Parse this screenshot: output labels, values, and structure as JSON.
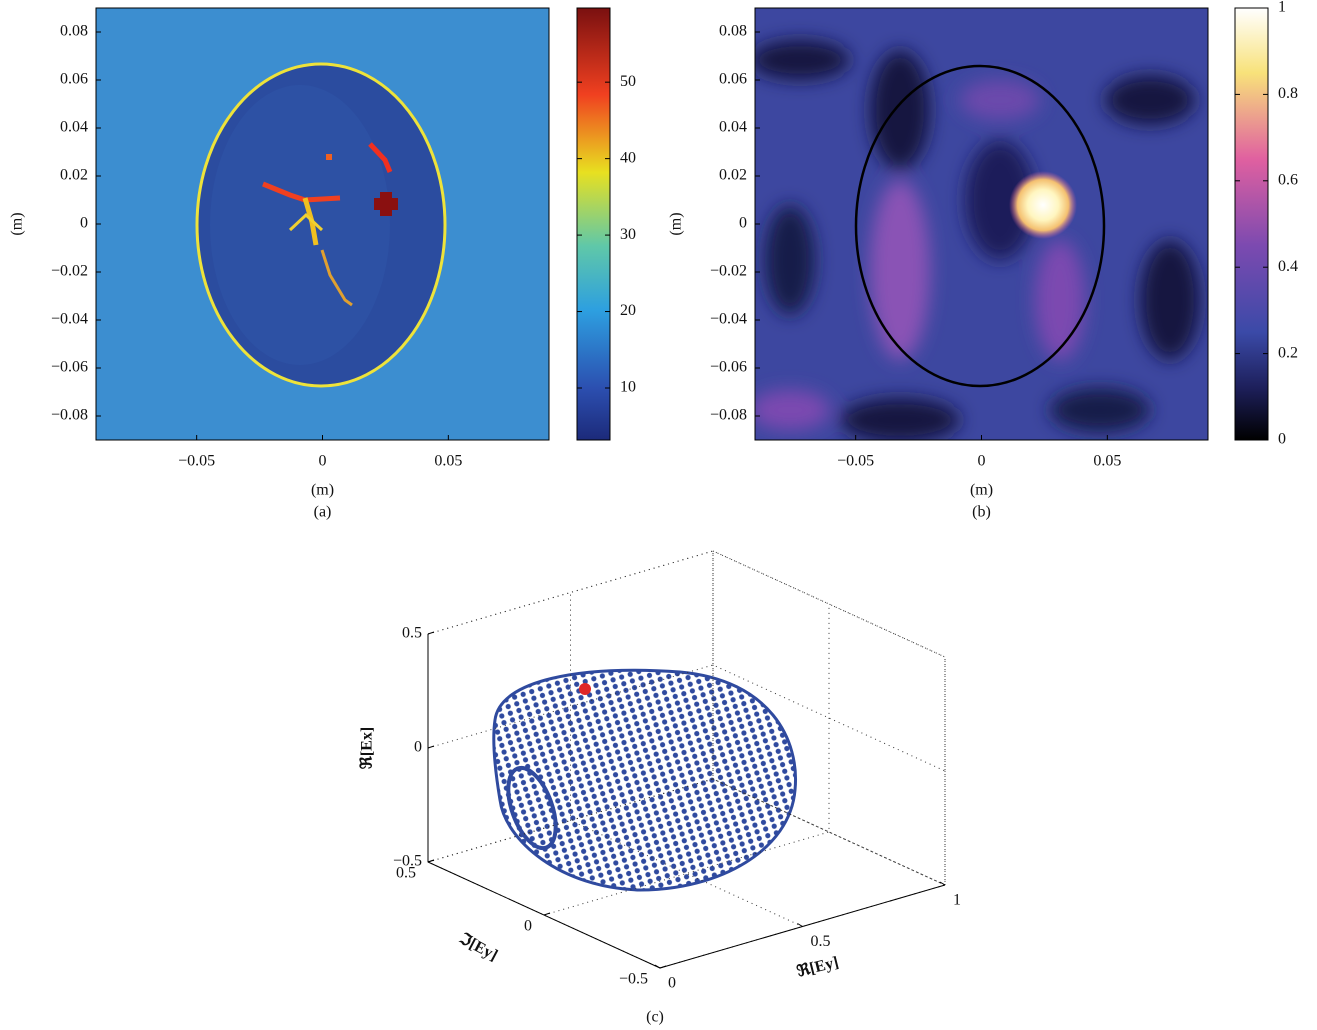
{
  "chart_data": [
    {
      "type": "heatmap",
      "caption": "(a)",
      "x_label": "(m)",
      "y_label": "(m)",
      "xlim": [
        -0.09,
        0.09
      ],
      "ylim": [
        -0.09,
        0.09
      ],
      "xticks": [
        {
          "value": -0.05,
          "label": "−0.05"
        },
        0,
        0.05
      ],
      "yticks": [
        {
          "value": -0.08,
          "label": "−0.08"
        },
        {
          "value": -0.06,
          "label": "−0.06"
        },
        {
          "value": -0.04,
          "label": "−0.04"
        },
        {
          "value": -0.02,
          "label": "−0.02"
        },
        0,
        0.02,
        0.04,
        0.06,
        0.08
      ],
      "colorbar": {
        "colormap": "jet",
        "clim": [
          3.2,
          59.7
        ],
        "ticks": [
          10,
          20,
          30,
          40,
          50
        ]
      }
    },
    {
      "type": "heatmap",
      "caption": "(b)",
      "x_label": "(m)",
      "y_label": "(m)",
      "xlim": [
        -0.09,
        0.09
      ],
      "ylim": [
        -0.09,
        0.09
      ],
      "xticks": [
        {
          "value": -0.05,
          "label": "−0.05"
        },
        0,
        0.05
      ],
      "yticks": [
        {
          "value": -0.08,
          "label": "−0.08"
        },
        {
          "value": -0.06,
          "label": "−0.06"
        },
        {
          "value": -0.04,
          "label": "−0.04"
        },
        {
          "value": -0.02,
          "label": "−0.02"
        },
        0,
        0.02,
        0.04,
        0.06,
        0.08
      ],
      "colorbar": {
        "colormap": "magma",
        "clim": [
          0,
          1
        ],
        "ticks": [
          0,
          0.2,
          0.4,
          0.6,
          0.8,
          1
        ]
      }
    },
    {
      "type": "scatter3d",
      "caption": "(c)",
      "x_label": "ℜ[Ey]",
      "y_label": "ℑ[Ey]",
      "z_label": "ℜ[Ex]",
      "xlim": [
        0,
        1
      ],
      "ylim": [
        -0.5,
        0.5
      ],
      "zlim": [
        -0.5,
        0.5
      ],
      "xticks": [
        0,
        0.5,
        1
      ],
      "yticks": [
        {
          "value": -0.5,
          "label": "−0.5"
        },
        0,
        0.5
      ],
      "zticks": [
        {
          "value": -0.5,
          "label": "−0.5"
        },
        0,
        0.5
      ],
      "marker_colors": [
        "#2f4a9f",
        "#e02626"
      ]
    }
  ]
}
